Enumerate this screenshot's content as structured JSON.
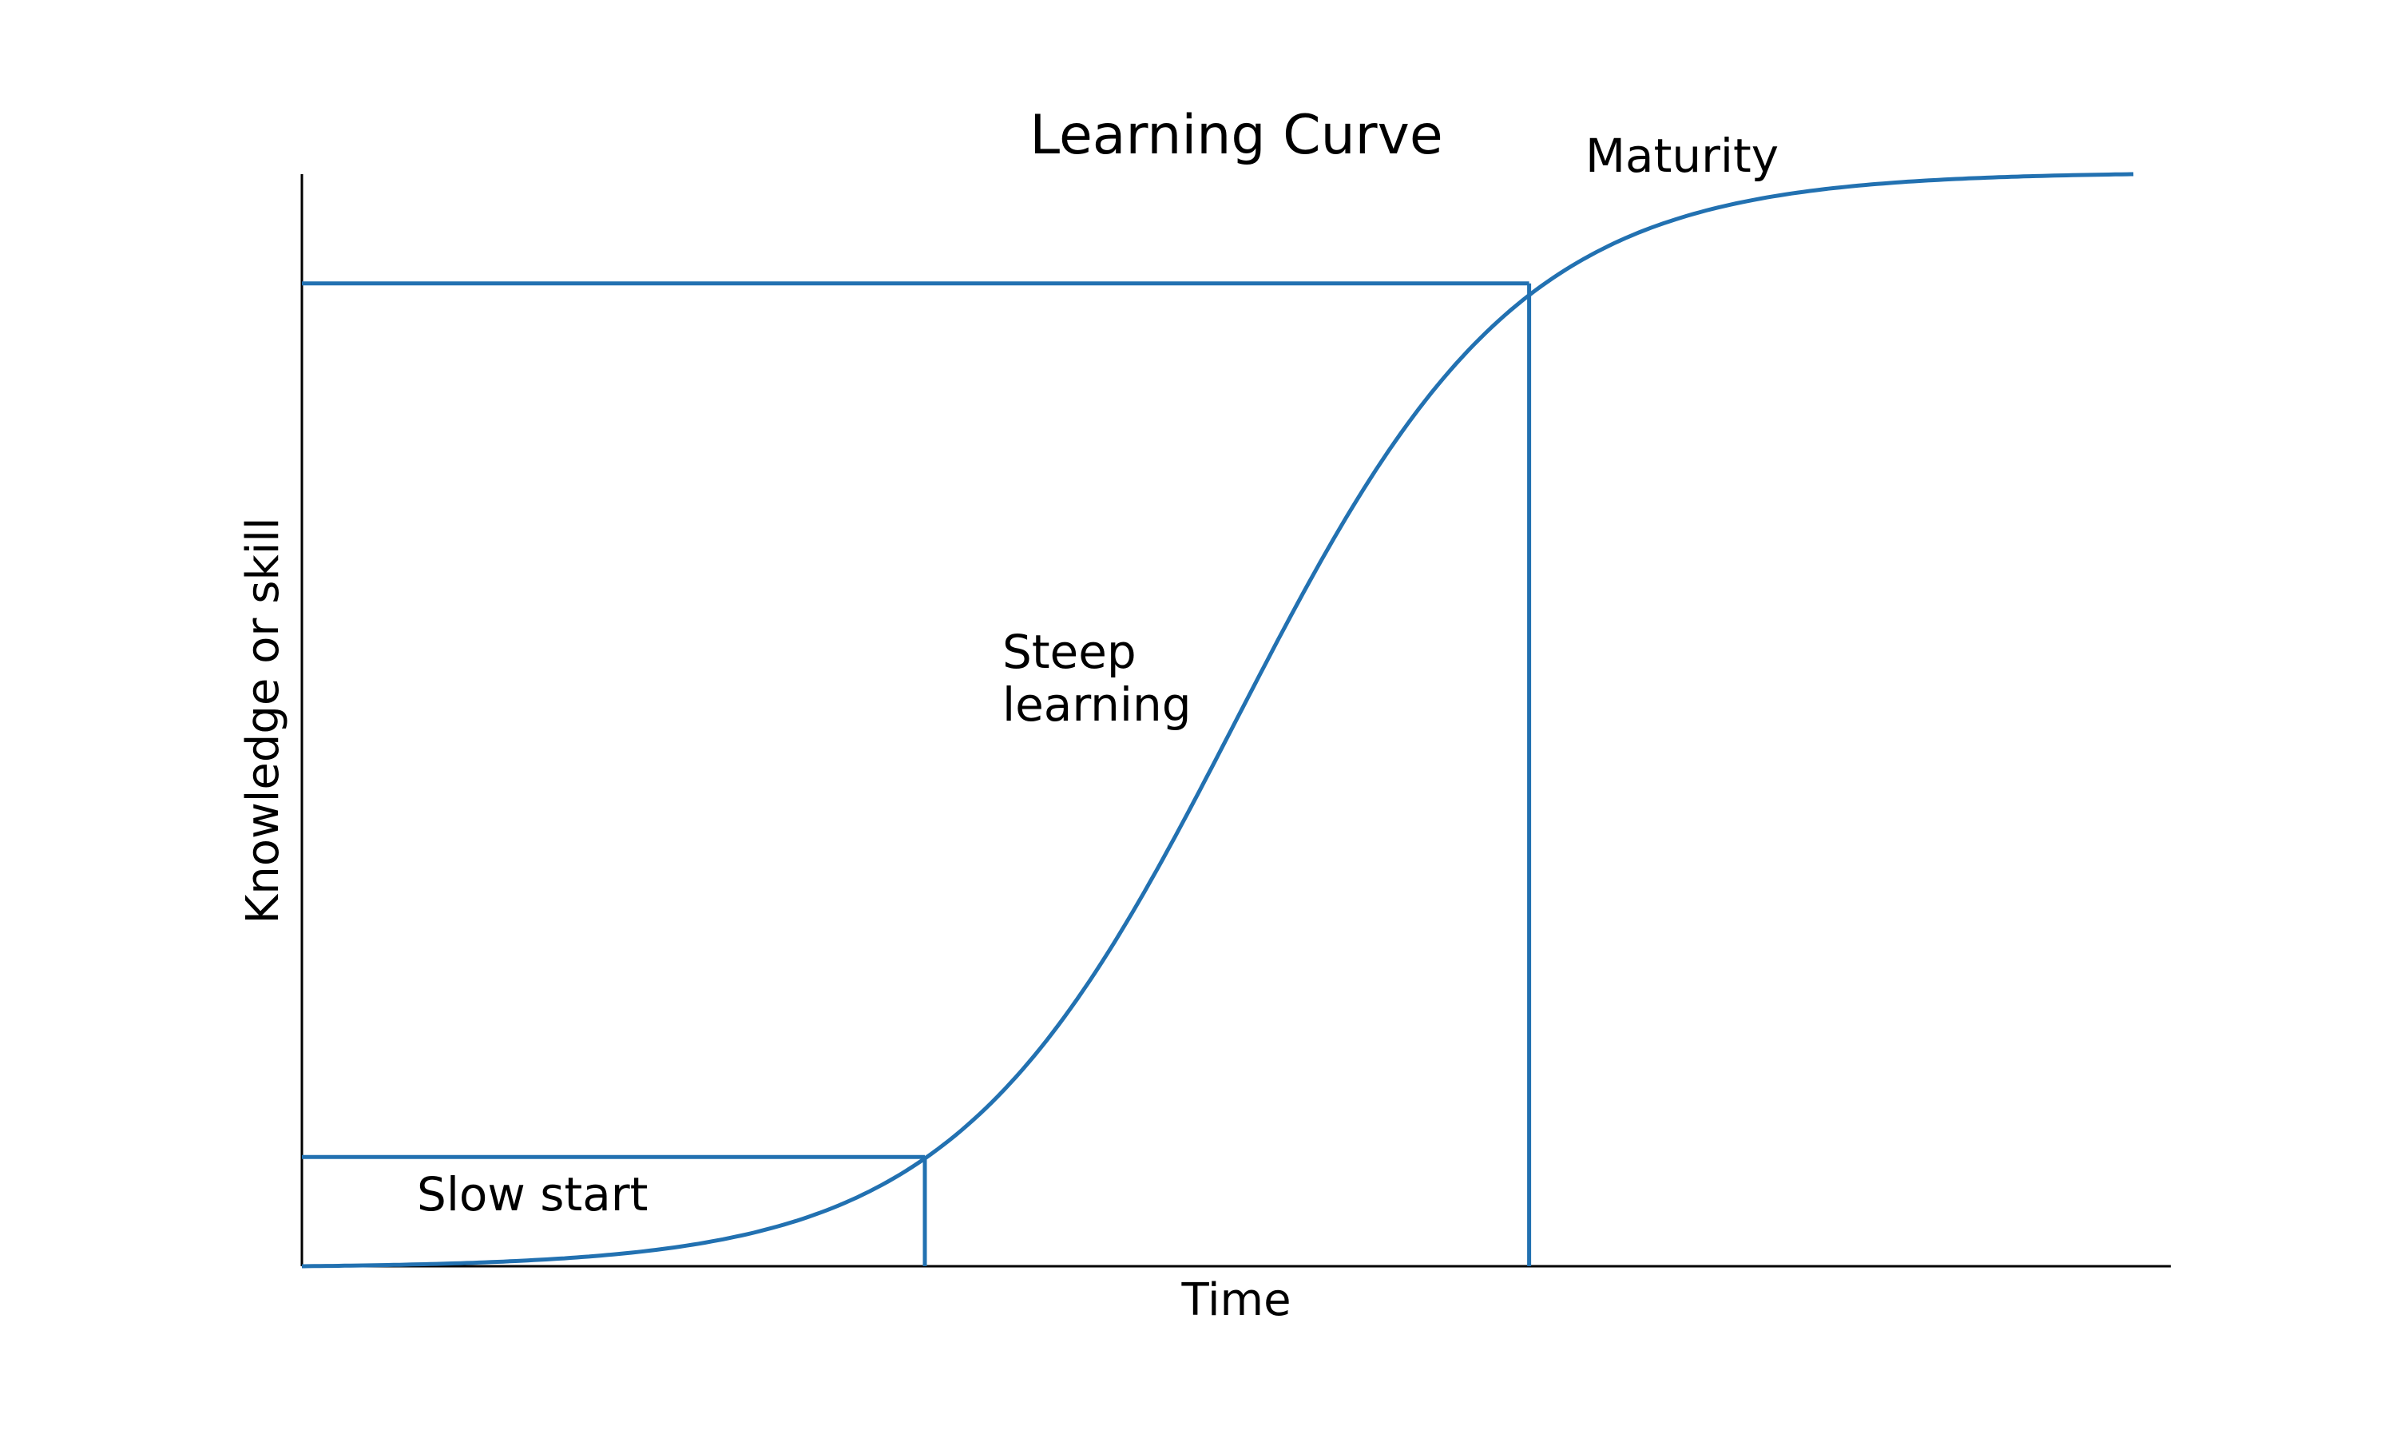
{
  "chart_data": {
    "type": "line",
    "title": "Learning Curve",
    "xlabel": "Time",
    "ylabel": "Knowledge or skill",
    "xlim": [
      0,
      3
    ],
    "ylim": [
      0,
      1
    ],
    "grid": false,
    "legend": "none",
    "ticks": "hidden",
    "series": [
      {
        "curve": "logistic",
        "color": "#2271b1",
        "points": [
          [
            0.0,
            0.0
          ],
          [
            0.5,
            0.01
          ],
          [
            0.8,
            0.04
          ],
          [
            1.0,
            0.1
          ],
          [
            1.2,
            0.22
          ],
          [
            1.4,
            0.4
          ],
          [
            1.5,
            0.5
          ],
          [
            1.6,
            0.6
          ],
          [
            1.8,
            0.78
          ],
          [
            2.0,
            0.9
          ],
          [
            2.2,
            0.96
          ],
          [
            2.5,
            0.99
          ],
          [
            2.94,
            1.0
          ]
        ]
      }
    ],
    "reference_lines": [
      {
        "x": 1.0,
        "y": 0.1
      },
      {
        "x": 1.97,
        "y": 0.9
      }
    ],
    "annotations": [
      {
        "text": "Slow start"
      },
      {
        "text": "Steep\nlearning"
      },
      {
        "text": "Maturity"
      }
    ]
  },
  "style": {
    "line_color": "#2271b1",
    "axis_color": "#000000",
    "text_color": "#000000"
  }
}
